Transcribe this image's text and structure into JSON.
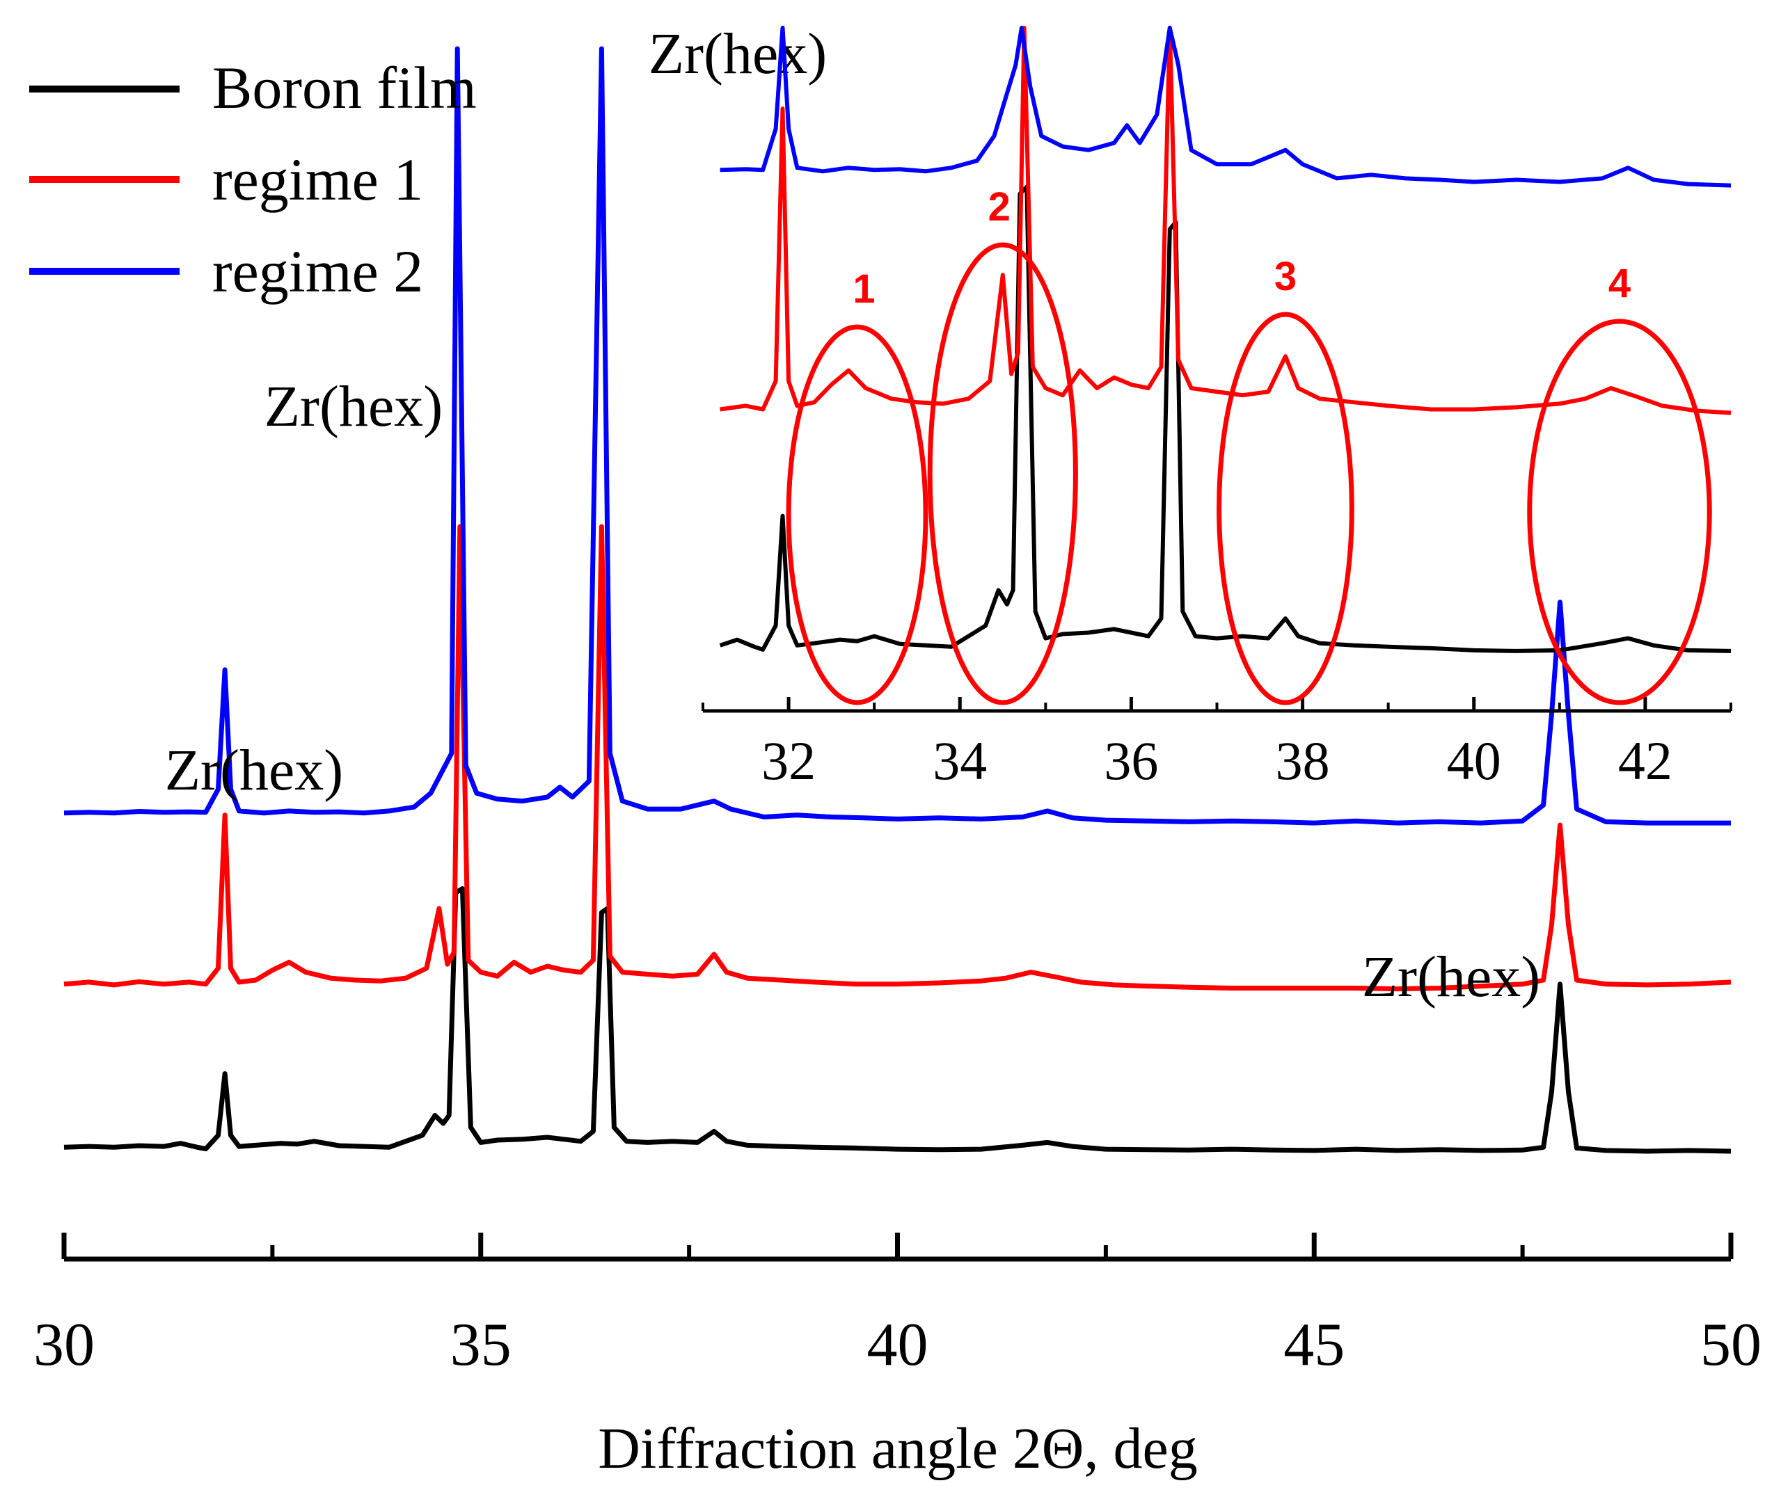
{
  "chart_data": {
    "type": "line",
    "main": {
      "xlabel": "Diffraction angle 2Θ, deg",
      "xlim": [
        30,
        50
      ],
      "major_ticks": [
        30,
        35,
        40,
        45,
        50
      ],
      "minor_ticks": [
        32.5,
        37.5,
        42.5,
        47.5
      ],
      "tick_labels": [
        "30",
        "35",
        "40",
        "45",
        "50"
      ],
      "series": [
        {
          "name": "Boron film",
          "color": "#000000",
          "baseline": 0,
          "points": [
            [
              30,
              0.1
            ],
            [
              30.3,
              0.12
            ],
            [
              30.6,
              0.1
            ],
            [
              30.9,
              0.14
            ],
            [
              31.2,
              0.12
            ],
            [
              31.4,
              0.2
            ],
            [
              31.6,
              0.1
            ],
            [
              31.7,
              0.06
            ],
            [
              31.85,
              0.4
            ],
            [
              31.93,
              1.95
            ],
            [
              32.0,
              0.4
            ],
            [
              32.1,
              0.12
            ],
            [
              32.3,
              0.15
            ],
            [
              32.6,
              0.2
            ],
            [
              32.8,
              0.18
            ],
            [
              33.0,
              0.25
            ],
            [
              33.3,
              0.14
            ],
            [
              33.6,
              0.12
            ],
            [
              33.9,
              0.1
            ],
            [
              34.1,
              0.25
            ],
            [
              34.3,
              0.4
            ],
            [
              34.45,
              0.9
            ],
            [
              34.55,
              0.7
            ],
            [
              34.62,
              0.9
            ],
            [
              34.7,
              6.5
            ],
            [
              34.78,
              6.6
            ],
            [
              34.88,
              0.6
            ],
            [
              35.0,
              0.22
            ],
            [
              35.2,
              0.28
            ],
            [
              35.5,
              0.3
            ],
            [
              35.8,
              0.35
            ],
            [
              36.0,
              0.3
            ],
            [
              36.2,
              0.25
            ],
            [
              36.35,
              0.5
            ],
            [
              36.45,
              6.0
            ],
            [
              36.52,
              6.1
            ],
            [
              36.6,
              0.6
            ],
            [
              36.75,
              0.25
            ],
            [
              37.0,
              0.22
            ],
            [
              37.3,
              0.25
            ],
            [
              37.6,
              0.22
            ],
            [
              37.8,
              0.5
            ],
            [
              37.95,
              0.25
            ],
            [
              38.2,
              0.15
            ],
            [
              38.6,
              0.12
            ],
            [
              39.0,
              0.1
            ],
            [
              39.5,
              0.08
            ],
            [
              40.0,
              0.05
            ],
            [
              40.5,
              0.04
            ],
            [
              41.0,
              0.05
            ],
            [
              41.5,
              0.15
            ],
            [
              41.8,
              0.22
            ],
            [
              42.1,
              0.12
            ],
            [
              42.5,
              0.05
            ],
            [
              43.0,
              0.04
            ],
            [
              43.5,
              0.03
            ],
            [
              44.0,
              0.05
            ],
            [
              44.5,
              0.03
            ],
            [
              45.0,
              0.02
            ],
            [
              45.5,
              0.05
            ],
            [
              46.0,
              0.02
            ],
            [
              46.5,
              0.04
            ],
            [
              47.0,
              0.02
            ],
            [
              47.5,
              0.03
            ],
            [
              47.75,
              0.1
            ],
            [
              47.85,
              1.5
            ],
            [
              47.95,
              4.2
            ],
            [
              48.05,
              1.5
            ],
            [
              48.15,
              0.08
            ],
            [
              48.5,
              0.02
            ],
            [
              49.0,
              0.0
            ],
            [
              49.5,
              0.02
            ],
            [
              50,
              0.0
            ]
          ]
        },
        {
          "name": "regime 1",
          "color": "#ff0000",
          "baseline": 4.2,
          "points": [
            [
              30,
              0.0
            ],
            [
              30.3,
              0.05
            ],
            [
              30.6,
              -0.02
            ],
            [
              30.9,
              0.06
            ],
            [
              31.2,
              0.0
            ],
            [
              31.5,
              0.05
            ],
            [
              31.7,
              0.0
            ],
            [
              31.85,
              0.4
            ],
            [
              31.93,
              4.25
            ],
            [
              32.0,
              0.4
            ],
            [
              32.1,
              0.05
            ],
            [
              32.3,
              0.1
            ],
            [
              32.5,
              0.35
            ],
            [
              32.7,
              0.55
            ],
            [
              32.9,
              0.3
            ],
            [
              33.2,
              0.15
            ],
            [
              33.5,
              0.1
            ],
            [
              33.8,
              0.08
            ],
            [
              34.1,
              0.15
            ],
            [
              34.35,
              0.4
            ],
            [
              34.5,
              1.9
            ],
            [
              34.6,
              0.5
            ],
            [
              34.68,
              0.8
            ],
            [
              34.75,
              11.5
            ],
            [
              34.85,
              0.6
            ],
            [
              35.0,
              0.3
            ],
            [
              35.2,
              0.2
            ],
            [
              35.4,
              0.55
            ],
            [
              35.6,
              0.3
            ],
            [
              35.8,
              0.45
            ],
            [
              36.0,
              0.35
            ],
            [
              36.2,
              0.3
            ],
            [
              36.35,
              0.6
            ],
            [
              36.45,
              11.5
            ],
            [
              36.55,
              0.7
            ],
            [
              36.7,
              0.3
            ],
            [
              37.0,
              0.25
            ],
            [
              37.3,
              0.2
            ],
            [
              37.6,
              0.25
            ],
            [
              37.8,
              0.75
            ],
            [
              37.95,
              0.3
            ],
            [
              38.2,
              0.15
            ],
            [
              38.6,
              0.1
            ],
            [
              39.0,
              0.05
            ],
            [
              39.5,
              0.0
            ],
            [
              40.0,
              0.0
            ],
            [
              40.5,
              0.03
            ],
            [
              41.0,
              0.08
            ],
            [
              41.3,
              0.15
            ],
            [
              41.6,
              0.3
            ],
            [
              41.9,
              0.18
            ],
            [
              42.2,
              0.05
            ],
            [
              42.6,
              -0.02
            ],
            [
              43.0,
              -0.05
            ],
            [
              43.5,
              -0.08
            ],
            [
              44.0,
              -0.1
            ],
            [
              44.5,
              -0.1
            ],
            [
              45.0,
              -0.1
            ],
            [
              45.5,
              -0.1
            ],
            [
              46.0,
              -0.12
            ],
            [
              46.5,
              -0.1
            ],
            [
              47.0,
              -0.05
            ],
            [
              47.5,
              0.0
            ],
            [
              47.75,
              0.1
            ],
            [
              47.85,
              1.5
            ],
            [
              47.95,
              4.0
            ],
            [
              48.05,
              1.5
            ],
            [
              48.15,
              0.1
            ],
            [
              48.5,
              0.0
            ],
            [
              49.0,
              -0.02
            ],
            [
              49.5,
              0.0
            ],
            [
              50,
              0.05
            ]
          ]
        },
        {
          "name": "regime 2",
          "color": "#0000ff",
          "baseline": 8.5,
          "points": [
            [
              30,
              0.0
            ],
            [
              30.3,
              0.02
            ],
            [
              30.6,
              0.0
            ],
            [
              30.9,
              0.04
            ],
            [
              31.2,
              0.02
            ],
            [
              31.5,
              0.03
            ],
            [
              31.7,
              0.02
            ],
            [
              31.85,
              0.6
            ],
            [
              31.93,
              3.6
            ],
            [
              32.0,
              0.6
            ],
            [
              32.1,
              0.05
            ],
            [
              32.4,
              0.0
            ],
            [
              32.7,
              0.05
            ],
            [
              33.0,
              0.02
            ],
            [
              33.3,
              0.03
            ],
            [
              33.6,
              0.0
            ],
            [
              33.9,
              0.05
            ],
            [
              34.2,
              0.15
            ],
            [
              34.4,
              0.5
            ],
            [
              34.55,
              1.1
            ],
            [
              34.65,
              1.5
            ],
            [
              34.72,
              20.4
            ],
            [
              34.82,
              1.2
            ],
            [
              34.95,
              0.5
            ],
            [
              35.2,
              0.35
            ],
            [
              35.5,
              0.3
            ],
            [
              35.8,
              0.4
            ],
            [
              35.95,
              0.65
            ],
            [
              36.1,
              0.4
            ],
            [
              36.3,
              0.8
            ],
            [
              36.45,
              24.0
            ],
            [
              36.55,
              1.5
            ],
            [
              36.7,
              0.3
            ],
            [
              37.0,
              0.1
            ],
            [
              37.4,
              0.1
            ],
            [
              37.8,
              0.3
            ],
            [
              38.0,
              0.1
            ],
            [
              38.4,
              -0.1
            ],
            [
              38.8,
              -0.05
            ],
            [
              39.2,
              -0.1
            ],
            [
              39.6,
              -0.12
            ],
            [
              40.0,
              -0.15
            ],
            [
              40.5,
              -0.12
            ],
            [
              41.0,
              -0.15
            ],
            [
              41.5,
              -0.1
            ],
            [
              41.8,
              0.05
            ],
            [
              42.1,
              -0.12
            ],
            [
              42.5,
              -0.18
            ],
            [
              43.0,
              -0.2
            ],
            [
              43.5,
              -0.22
            ],
            [
              44.0,
              -0.2
            ],
            [
              44.5,
              -0.22
            ],
            [
              45.0,
              -0.25
            ],
            [
              45.5,
              -0.2
            ],
            [
              46.0,
              -0.25
            ],
            [
              46.5,
              -0.22
            ],
            [
              47.0,
              -0.25
            ],
            [
              47.5,
              -0.2
            ],
            [
              47.75,
              0.2
            ],
            [
              47.85,
              2.5
            ],
            [
              47.95,
              5.3
            ],
            [
              48.05,
              2.5
            ],
            [
              48.15,
              0.1
            ],
            [
              48.5,
              -0.22
            ],
            [
              49.0,
              -0.25
            ],
            [
              49.5,
              -0.25
            ],
            [
              50,
              -0.25
            ]
          ]
        }
      ],
      "annotations": [
        "Zr(hex)",
        "Zr(hex)",
        "Zr(hex)",
        "Zr(hex)"
      ]
    },
    "inset": {
      "xlim": [
        31,
        43
      ],
      "tick_labels": [
        "32",
        "34",
        "36",
        "38",
        "40",
        "42"
      ],
      "major_ticks": [
        32,
        34,
        36,
        38,
        40,
        42
      ],
      "minor_ticks": [
        31,
        33,
        35,
        37,
        39,
        41,
        43
      ],
      "regions": [
        {
          "label": "1",
          "center": 32.8,
          "width": 1.6
        },
        {
          "label": "2",
          "center": 34.5,
          "width": 1.7
        },
        {
          "label": "3",
          "center": 37.8,
          "width": 1.55
        },
        {
          "label": "4",
          "center": 41.7,
          "width": 2.1
        }
      ]
    },
    "legend": [
      "Boron film",
      "regime 1",
      "regime 2"
    ]
  }
}
